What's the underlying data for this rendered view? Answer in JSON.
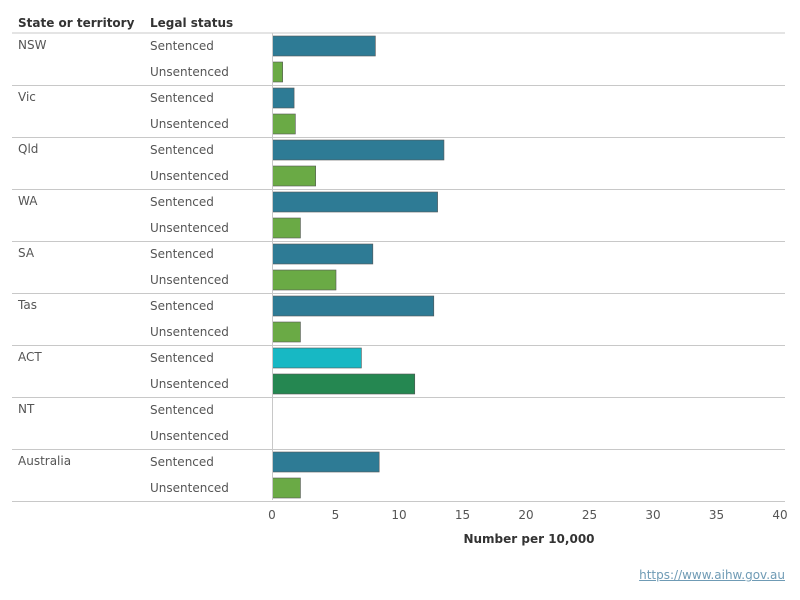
{
  "chart_data": {
    "type": "bar",
    "orientation": "horizontal",
    "headers": {
      "state": "State or territory",
      "status": "Legal status"
    },
    "xlabel": "Number per 10,000",
    "xlim": [
      0,
      40
    ],
    "xticks": [
      0,
      5,
      10,
      15,
      20,
      25,
      30,
      35,
      40
    ],
    "groups": [
      {
        "state": "NSW",
        "rows": [
          {
            "status": "Sentenced",
            "value": 8.1,
            "color": "#2e7b95"
          },
          {
            "status": "Unsentenced",
            "value": 0.8,
            "color": "#6aaa45"
          }
        ]
      },
      {
        "state": "Vic",
        "rows": [
          {
            "status": "Sentenced",
            "value": 1.7,
            "color": "#2e7b95"
          },
          {
            "status": "Unsentenced",
            "value": 1.8,
            "color": "#6aaa45"
          }
        ]
      },
      {
        "state": "Qld",
        "rows": [
          {
            "status": "Sentenced",
            "value": 13.5,
            "color": "#2e7b95"
          },
          {
            "status": "Unsentenced",
            "value": 3.4,
            "color": "#6aaa45"
          }
        ]
      },
      {
        "state": "WA",
        "rows": [
          {
            "status": "Sentenced",
            "value": 13.0,
            "color": "#2e7b95"
          },
          {
            "status": "Unsentenced",
            "value": 2.2,
            "color": "#6aaa45"
          }
        ]
      },
      {
        "state": "SA",
        "rows": [
          {
            "status": "Sentenced",
            "value": 7.9,
            "color": "#2e7b95"
          },
          {
            "status": "Unsentenced",
            "value": 5.0,
            "color": "#6aaa45"
          }
        ]
      },
      {
        "state": "Tas",
        "rows": [
          {
            "status": "Sentenced",
            "value": 12.7,
            "color": "#2e7b95"
          },
          {
            "status": "Unsentenced",
            "value": 2.2,
            "color": "#6aaa45"
          }
        ]
      },
      {
        "state": "ACT",
        "rows": [
          {
            "status": "Sentenced",
            "value": 7.0,
            "color": "#17b8c4"
          },
          {
            "status": "Unsentenced",
            "value": 11.2,
            "color": "#258751"
          }
        ]
      },
      {
        "state": "NT",
        "rows": [
          {
            "status": "Sentenced",
            "value": null,
            "color": "#2e7b95"
          },
          {
            "status": "Unsentenced",
            "value": null,
            "color": "#6aaa45"
          }
        ]
      },
      {
        "state": "Australia",
        "rows": [
          {
            "status": "Sentenced",
            "value": 8.4,
            "color": "#2e7b95"
          },
          {
            "status": "Unsentenced",
            "value": 2.2,
            "color": "#6aaa45"
          }
        ]
      }
    ]
  },
  "source_link": "https://www.aihw.gov.au"
}
